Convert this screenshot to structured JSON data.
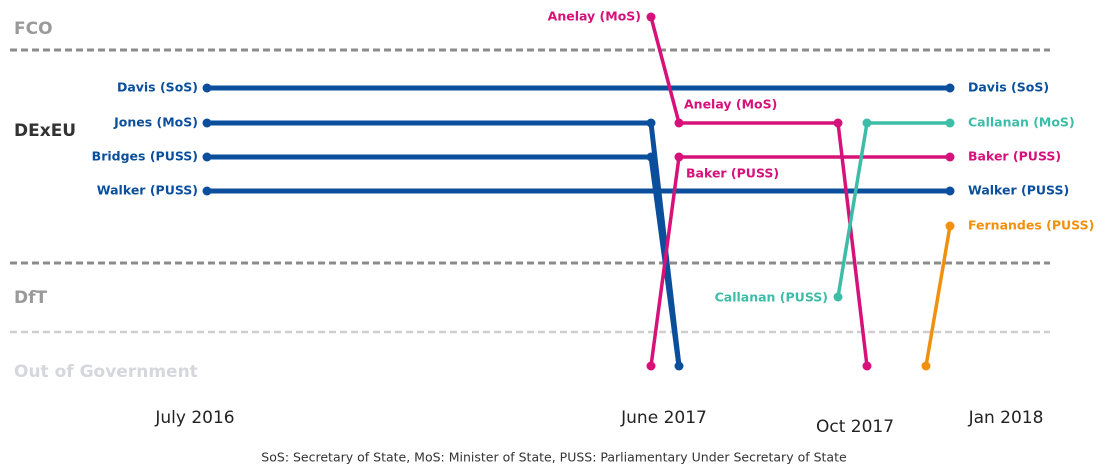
{
  "departments": [
    "FCO",
    "DExEU",
    "DfT",
    "Out of Government"
  ],
  "dates": [
    "July 2016",
    "June 2017",
    "Oct 2017",
    "Jan 2018"
  ],
  "labels": {
    "davis_left": "Davis (SoS)",
    "davis_right": "Davis (SoS)",
    "jones": "Jones (MoS)",
    "bridges": "Bridges (PUSS)",
    "walker_left": "Walker (PUSS)",
    "walker_right": "Walker (PUSS)",
    "anelay_top": "Anelay (MoS)",
    "anelay_mid": "Anelay (MoS)",
    "baker_mid": "Baker (PUSS)",
    "baker_right": "Baker (PUSS)",
    "callanan_left": "Callanan (PUSS)",
    "callanan_right": "Callanan (MoS)",
    "fernandes": "Fernandes (PUSS)"
  },
  "footnote": "SoS: Secretary of State, MoS: Minister of State, PUSS: Parliamentary Under Secretary of State"
}
